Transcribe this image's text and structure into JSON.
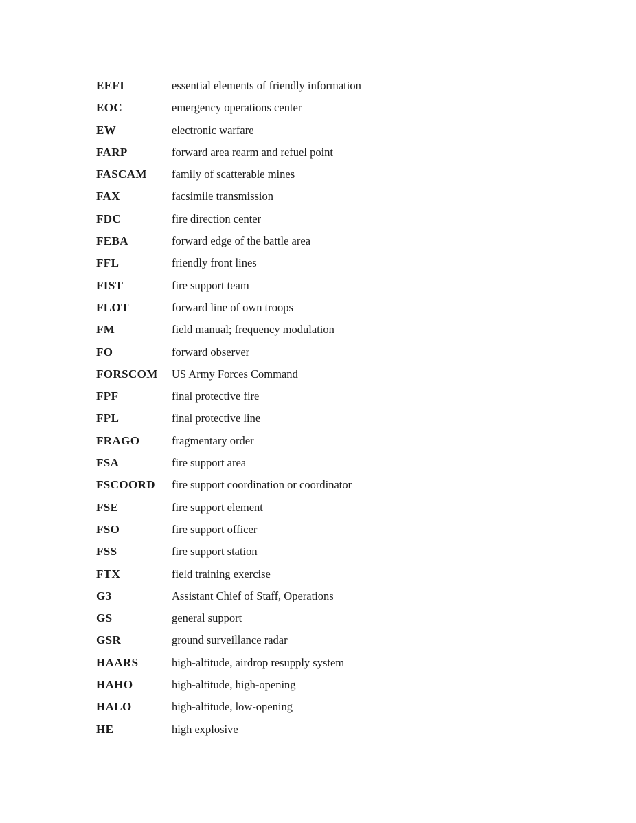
{
  "page": {
    "type": "glossary",
    "text_color": "#1c1c1c",
    "background_color": "#ffffff",
    "entries": [
      {
        "abbr": "EEFI",
        "definition": "essential elements of friendly information"
      },
      {
        "abbr": "EOC",
        "definition": "emergency operations center"
      },
      {
        "abbr": "EW",
        "definition": "electronic warfare"
      },
      {
        "abbr": "FARP",
        "definition": "forward area rearm and refuel point"
      },
      {
        "abbr": "FASCAM",
        "definition": "family of scatterable mines"
      },
      {
        "abbr": "FAX",
        "definition": "facsimile transmission"
      },
      {
        "abbr": "FDC",
        "definition": "fire direction center"
      },
      {
        "abbr": "FEBA",
        "definition": "forward edge of the battle area"
      },
      {
        "abbr": "FFL",
        "definition": "friendly front lines"
      },
      {
        "abbr": "FIST",
        "definition": "fire support team"
      },
      {
        "abbr": "FLOT",
        "definition": "forward line of own troops"
      },
      {
        "abbr": "FM",
        "definition": "field manual; frequency modulation"
      },
      {
        "abbr": "FO",
        "definition": "forward observer"
      },
      {
        "abbr": "FORSCOM",
        "definition": "US Army Forces Command"
      },
      {
        "abbr": "FPF",
        "definition": "final protective fire"
      },
      {
        "abbr": "FPL",
        "definition": "final protective line"
      },
      {
        "abbr": "FRAGO",
        "definition": "fragmentary order"
      },
      {
        "abbr": "FSA",
        "definition": "fire support area"
      },
      {
        "abbr": "FSCOORD",
        "definition": "fire support coordination or coordinator"
      },
      {
        "abbr": "FSE",
        "definition": "fire support element"
      },
      {
        "abbr": "FSO",
        "definition": "fire support officer"
      },
      {
        "abbr": "FSS",
        "definition": "fire support station"
      },
      {
        "abbr": "FTX",
        "definition": "field training exercise"
      },
      {
        "abbr": "G3",
        "definition": "Assistant Chief of Staff, Operations"
      },
      {
        "abbr": "GS",
        "definition": "general support"
      },
      {
        "abbr": "GSR",
        "definition": "ground surveillance radar"
      },
      {
        "abbr": "HAARS",
        "definition": "high-altitude, airdrop resupply system"
      },
      {
        "abbr": "HAHO",
        "definition": "high-altitude, high-opening"
      },
      {
        "abbr": "HALO",
        "definition": "high-altitude, low-opening"
      },
      {
        "abbr": "HE",
        "definition": "high explosive"
      }
    ]
  }
}
